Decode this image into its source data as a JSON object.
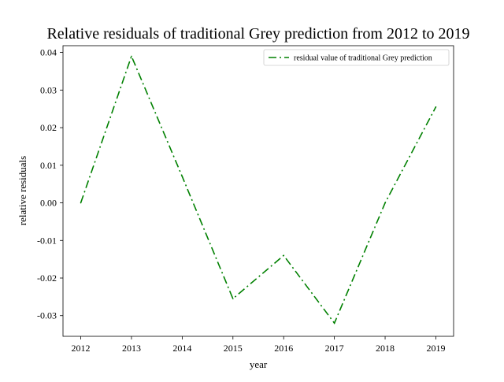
{
  "chart_data": {
    "type": "line",
    "title": "Relative residuals of traditional Grey prediction from 2012 to 2019",
    "xlabel": "year",
    "ylabel": "relative residuals",
    "x": [
      "2012",
      "2013",
      "2014",
      "2015",
      "2016",
      "2017",
      "2018",
      "2019"
    ],
    "xlim": [
      2011.65,
      2019.35
    ],
    "ylim": [
      -0.0355,
      0.0418
    ],
    "yticks": [
      -0.03,
      -0.02,
      -0.01,
      0.0,
      0.01,
      0.02,
      0.03,
      0.04
    ],
    "ytick_labels": [
      "-0.03",
      "-0.02",
      "-0.01",
      "0.00",
      "0.01",
      "0.02",
      "0.03",
      "0.04"
    ],
    "series": [
      {
        "name": "residual value of traditional Grey prediction",
        "color": "#008000",
        "line_style": "dash-dot",
        "values": [
          0.0,
          0.039,
          0.007,
          -0.0255,
          -0.014,
          -0.032,
          0.0,
          0.0255
        ]
      }
    ],
    "grid": false,
    "legend_position": "top-right"
  }
}
